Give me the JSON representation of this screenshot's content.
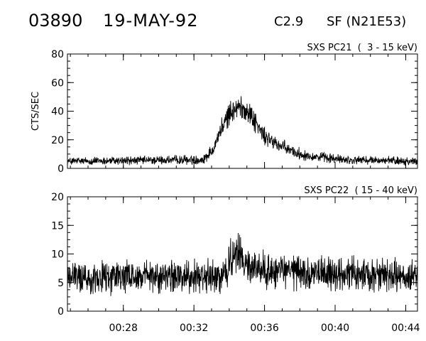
{
  "header": {
    "event_id": "03890",
    "date": "19-MAY-92",
    "flare_class": "C2.9",
    "flare_location": "SF (N21E53)"
  },
  "chart_data": [
    {
      "type": "line",
      "title": "SXS PC21  (  3 - 15 keV)",
      "ylabel": "CTS/SEC",
      "xlabel": "",
      "xlim": [
        "00:24:50",
        "00:44:40"
      ],
      "ylim": [
        0,
        80
      ],
      "yticks": [
        0,
        20,
        40,
        60,
        80
      ],
      "xticks": [],
      "background": 5,
      "noise_amplitude": 3,
      "envelope": [
        {
          "t": "00:24:50",
          "v": 5
        },
        {
          "t": "00:32:30",
          "v": 6
        },
        {
          "t": "00:33:00",
          "v": 12
        },
        {
          "t": "00:33:30",
          "v": 26
        },
        {
          "t": "00:34:00",
          "v": 38
        },
        {
          "t": "00:34:30",
          "v": 43
        },
        {
          "t": "00:35:00",
          "v": 41
        },
        {
          "t": "00:35:30",
          "v": 32
        },
        {
          "t": "00:36:00",
          "v": 22
        },
        {
          "t": "00:37:00",
          "v": 15
        },
        {
          "t": "00:38:00",
          "v": 10
        },
        {
          "t": "00:39:00",
          "v": 8
        },
        {
          "t": "00:40:30",
          "v": 6
        },
        {
          "t": "00:44:40",
          "v": 5
        }
      ]
    },
    {
      "type": "line",
      "title": "SXS PC22  ( 15 - 40 keV)",
      "ylabel": "",
      "xlabel": "",
      "xlim": [
        "00:24:50",
        "00:44:40"
      ],
      "ylim": [
        0,
        20
      ],
      "yticks": [
        0,
        5,
        10,
        15,
        20
      ],
      "xticks": [
        "00:28",
        "00:32",
        "00:36",
        "00:40",
        "00:44"
      ],
      "background": 6,
      "noise_amplitude": 3,
      "envelope": [
        {
          "t": "00:24:50",
          "v": 6
        },
        {
          "t": "00:33:30",
          "v": 6
        },
        {
          "t": "00:34:00",
          "v": 8.5
        },
        {
          "t": "00:34:30",
          "v": 10
        },
        {
          "t": "00:35:00",
          "v": 8
        },
        {
          "t": "00:36:00",
          "v": 7
        },
        {
          "t": "00:44:40",
          "v": 6
        }
      ]
    }
  ]
}
